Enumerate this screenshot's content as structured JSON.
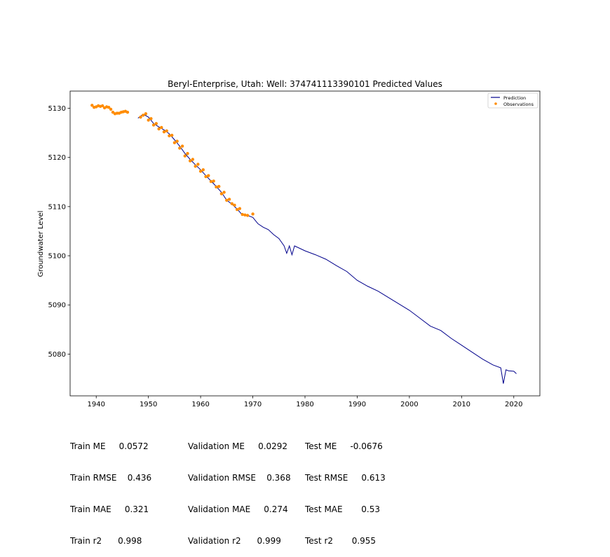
{
  "chart_data": {
    "type": "line",
    "title": "Beryl-Enterprise, Utah: Well: 374741113390101 Predicted Values",
    "xlabel": "",
    "ylabel": "Groundwater Level",
    "xlim": [
      1935,
      2025
    ],
    "ylim": [
      5071.5,
      5133.5
    ],
    "x_ticks": [
      1940,
      1950,
      1960,
      1970,
      1980,
      1990,
      2000,
      2010,
      2020
    ],
    "y_ticks": [
      5080,
      5090,
      5100,
      5110,
      5120,
      5130
    ],
    "legend": [
      "Prediction",
      "Observations"
    ],
    "legend_position": "top-right",
    "colors": {
      "prediction": "#00008b",
      "observations": "#ff8c00"
    },
    "series": [
      {
        "name": "Prediction",
        "kind": "line",
        "x": [
          1948.0,
          1949.0,
          1950.0,
          1951.0,
          1952.0,
          1953.0,
          1954.0,
          1955.0,
          1956.0,
          1957.0,
          1958.0,
          1959.0,
          1960.0,
          1961.0,
          1962.0,
          1963.0,
          1964.0,
          1965.0,
          1966.0,
          1967.0,
          1968.0,
          1969.0,
          1970.0,
          1971.0,
          1972.0,
          1973.0,
          1974.0,
          1975.0,
          1976.0,
          1976.5,
          1977.0,
          1977.5,
          1978.0,
          1979.0,
          1980.0,
          1982.0,
          1984.0,
          1986.0,
          1988.0,
          1990.0,
          1992.0,
          1994.0,
          1996.0,
          1998.0,
          2000.0,
          2002.0,
          2004.0,
          2006.0,
          2008.0,
          2010.0,
          2012.0,
          2014.0,
          2016.0,
          2017.5,
          2018.0,
          2018.5,
          2019.0,
          2020.0,
          2020.5
        ],
        "y": [
          5128.0,
          5128.8,
          5128.2,
          5126.9,
          5126.2,
          5125.6,
          5124.8,
          5123.6,
          5122.3,
          5120.8,
          5119.6,
          5118.5,
          5117.5,
          5116.3,
          5115.2,
          5114.1,
          5112.9,
          5111.3,
          5110.5,
          5109.5,
          5108.3,
          5108.2,
          5107.8,
          5106.5,
          5105.8,
          5105.3,
          5104.3,
          5103.5,
          5102.0,
          5100.5,
          5102.0,
          5100.2,
          5102.0,
          5101.5,
          5101.0,
          5100.2,
          5099.3,
          5098.0,
          5096.8,
          5095.0,
          5093.8,
          5092.8,
          5091.5,
          5090.2,
          5088.9,
          5087.3,
          5085.7,
          5084.8,
          5083.2,
          5081.8,
          5080.4,
          5079.0,
          5077.8,
          5077.2,
          5074.0,
          5076.8,
          5076.6,
          5076.5,
          5076.0
        ]
      },
      {
        "name": "Observations",
        "kind": "scatter",
        "x": [
          1939.2,
          1939.6,
          1940.0,
          1940.4,
          1940.8,
          1941.2,
          1941.6,
          1942.0,
          1942.4,
          1942.8,
          1943.2,
          1943.6,
          1944.0,
          1944.4,
          1944.8,
          1945.2,
          1945.6,
          1946.0,
          1948.5,
          1949.0,
          1949.5,
          1950.0,
          1950.5,
          1951.0,
          1951.5,
          1952.0,
          1952.5,
          1953.0,
          1953.5,
          1954.0,
          1954.5,
          1955.0,
          1955.5,
          1956.0,
          1956.5,
          1957.0,
          1957.5,
          1958.0,
          1958.5,
          1959.0,
          1959.5,
          1960.0,
          1960.5,
          1961.0,
          1961.5,
          1962.0,
          1962.5,
          1963.0,
          1963.5,
          1964.0,
          1964.5,
          1965.0,
          1965.5,
          1966.0,
          1966.5,
          1967.0,
          1967.5,
          1968.0,
          1968.5,
          1969.0,
          1970.0
        ],
        "y": [
          5130.6,
          5130.2,
          5130.3,
          5130.5,
          5130.4,
          5130.5,
          5130.1,
          5130.3,
          5130.2,
          5129.8,
          5129.2,
          5128.9,
          5129.0,
          5129.0,
          5129.2,
          5129.3,
          5129.4,
          5129.2,
          5128.2,
          5128.6,
          5128.9,
          5127.6,
          5127.9,
          5126.6,
          5126.9,
          5125.8,
          5126.1,
          5125.2,
          5125.4,
          5124.4,
          5124.5,
          5123.0,
          5123.3,
          5121.9,
          5122.3,
          5120.3,
          5120.8,
          5119.3,
          5119.6,
          5118.2,
          5118.6,
          5117.2,
          5117.5,
          5116.1,
          5116.3,
          5115.1,
          5115.2,
          5114.0,
          5114.1,
          5112.6,
          5112.9,
          5111.3,
          5111.5,
          5110.6,
          5110.3,
          5109.4,
          5109.6,
          5108.4,
          5108.3,
          5108.2,
          5108.5
        ]
      }
    ]
  },
  "metrics": {
    "train": [
      "Train ME     0.0572",
      "Train RMSE    0.436",
      "Train MAE     0.321",
      "Train r2      0.998"
    ],
    "validation": [
      "Validation ME     0.0292",
      "Validation RMSE    0.368",
      "Validation MAE     0.274",
      "Validation r2      0.999"
    ],
    "test": [
      "Test ME     -0.0676",
      "Test RMSE     0.613",
      "Test MAE       0.53",
      "Test r2       0.955"
    ]
  }
}
